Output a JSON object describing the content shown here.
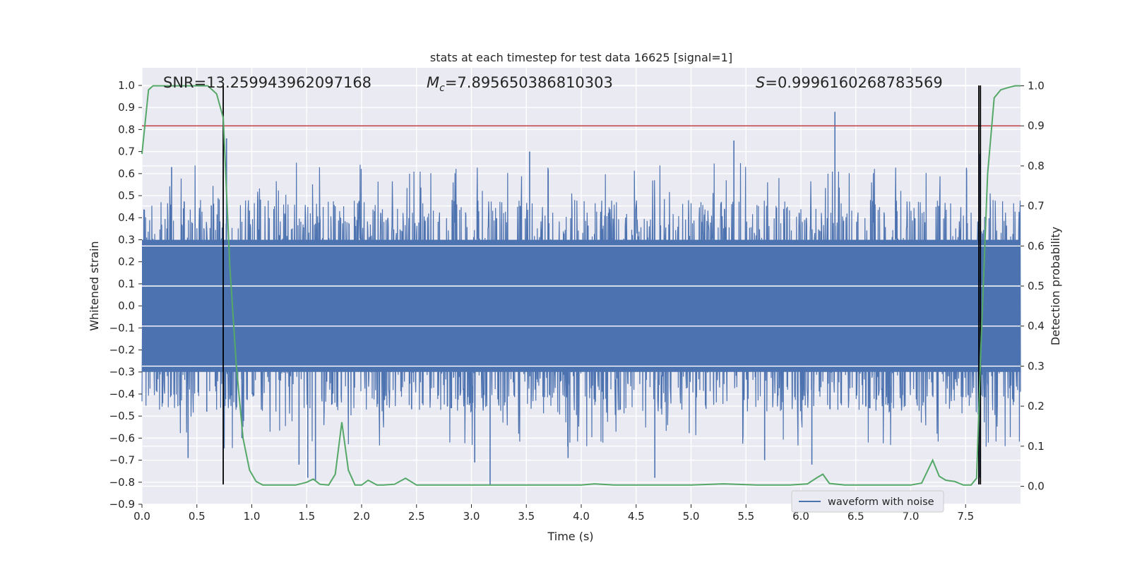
{
  "chart_data": {
    "type": "line",
    "title": "stats at each timestep for test data 16625 [signal=1]",
    "xlabel": "Time (s)",
    "ylabel_left": "Whitened strain",
    "ylabel_right": "Detection probability",
    "xlim": [
      0.0,
      8.0
    ],
    "ylim_left": [
      -0.9,
      1.08
    ],
    "ylim_right": [
      -0.045,
      1.045
    ],
    "x_ticks": [
      "0.0",
      "0.5",
      "1.0",
      "1.5",
      "2.0",
      "2.5",
      "3.0",
      "3.5",
      "4.0",
      "4.5",
      "5.0",
      "5.5",
      "6.0",
      "6.5",
      "7.0",
      "7.5"
    ],
    "x_tick_values": [
      0.0,
      0.5,
      1.0,
      1.5,
      2.0,
      2.5,
      3.0,
      3.5,
      4.0,
      4.5,
      5.0,
      5.5,
      6.0,
      6.5,
      7.0,
      7.5
    ],
    "y_ticks_left": [
      "1.0",
      "0.9",
      "0.8",
      "0.7",
      "0.6",
      "0.5",
      "0.4",
      "0.3",
      "0.2",
      "0.1",
      "0.0",
      "−0.1",
      "−0.2",
      "−0.3",
      "−0.4",
      "−0.5",
      "−0.6",
      "−0.7",
      "−0.8",
      "−0.9"
    ],
    "y_tick_values_left": [
      1.0,
      0.9,
      0.8,
      0.7,
      0.6,
      0.5,
      0.4,
      0.3,
      0.2,
      0.1,
      0.0,
      -0.1,
      -0.2,
      -0.3,
      -0.4,
      -0.5,
      -0.6,
      -0.7,
      -0.8,
      -0.9
    ],
    "y_ticks_right": [
      "1.0",
      "0.9",
      "0.8",
      "0.7",
      "0.6",
      "0.5",
      "0.4",
      "0.3",
      "0.2",
      "0.1",
      "0.0"
    ],
    "y_tick_values_right": [
      1.0,
      0.9,
      0.8,
      0.7,
      0.6,
      0.5,
      0.4,
      0.3,
      0.2,
      0.1,
      0.0
    ],
    "grid": true,
    "annotations": {
      "snr": "SNR=13.259943962097168",
      "mc_symbol": "M",
      "mc_subscript": "c",
      "mc_value": "=7.895650386810303",
      "s_symbol": "S",
      "s_value": "=0.9996160268783569"
    },
    "threshold_right": 0.9,
    "vlines_x": [
      0.74,
      7.62,
      7.635
    ],
    "vlines_ymin_left": -0.81,
    "vlines_ymax_left": 1.0,
    "series": [
      {
        "name": "waveform with noise",
        "color": "#4c72b0",
        "style": "dense-noise",
        "envelope_upper": 0.3,
        "envelope_lower": -0.3,
        "spikes": [
          {
            "x": 0.77,
            "y": 0.76
          },
          {
            "x": 0.27,
            "y": 0.63
          },
          {
            "x": 0.42,
            "y": -0.69
          },
          {
            "x": 0.59,
            "y": -0.48
          },
          {
            "x": 0.91,
            "y": -0.6
          },
          {
            "x": 1.43,
            "y": -0.72
          },
          {
            "x": 1.51,
            "y": -0.78
          },
          {
            "x": 1.58,
            "y": -0.79
          },
          {
            "x": 3.03,
            "y": -0.71
          },
          {
            "x": 3.17,
            "y": -0.81
          },
          {
            "x": 3.53,
            "y": 0.7
          },
          {
            "x": 3.88,
            "y": -0.69
          },
          {
            "x": 5.39,
            "y": 0.75
          },
          {
            "x": 5.67,
            "y": -0.7
          },
          {
            "x": 6.1,
            "y": -0.72
          },
          {
            "x": 6.31,
            "y": 0.88
          },
          {
            "x": 7.63,
            "y": -0.78
          },
          {
            "x": 7.63,
            "y": 0.69
          },
          {
            "x": 4.67,
            "y": -0.78
          }
        ]
      },
      {
        "name": "",
        "color": "#55a868",
        "axis": "right",
        "x": [
          0.0,
          0.06,
          0.1,
          0.2,
          0.4,
          0.6,
          0.68,
          0.74,
          0.8,
          0.86,
          0.92,
          0.98,
          1.04,
          1.1,
          1.2,
          1.4,
          1.5,
          1.56,
          1.62,
          1.7,
          1.76,
          1.82,
          1.88,
          1.94,
          2.0,
          2.06,
          2.14,
          2.2,
          2.3,
          2.4,
          2.5,
          2.6,
          3.0,
          3.5,
          4.0,
          4.12,
          4.3,
          4.5,
          5.0,
          5.3,
          5.6,
          5.9,
          6.06,
          6.15,
          6.2,
          6.26,
          6.4,
          6.6,
          7.0,
          7.1,
          7.2,
          7.26,
          7.32,
          7.4,
          7.48,
          7.55,
          7.6,
          7.64,
          7.7,
          7.76,
          7.82,
          7.88,
          7.95,
          8.0
        ],
        "y": [
          0.83,
          0.99,
          1.0,
          1.0,
          1.0,
          1.0,
          0.98,
          0.92,
          0.55,
          0.3,
          0.12,
          0.04,
          0.012,
          0.003,
          0.003,
          0.003,
          0.01,
          0.018,
          0.005,
          0.003,
          0.03,
          0.16,
          0.04,
          0.003,
          0.003,
          0.015,
          0.003,
          0.003,
          0.005,
          0.02,
          0.003,
          0.003,
          0.003,
          0.003,
          0.003,
          0.006,
          0.003,
          0.003,
          0.003,
          0.006,
          0.003,
          0.003,
          0.006,
          0.022,
          0.03,
          0.007,
          0.003,
          0.003,
          0.003,
          0.008,
          0.065,
          0.025,
          0.015,
          0.012,
          0.003,
          0.003,
          0.02,
          0.35,
          0.78,
          0.97,
          0.99,
          0.995,
          1.0,
          1.0
        ]
      },
      {
        "name": "",
        "color": "#c44e52",
        "axis": "right",
        "style": "hline"
      }
    ],
    "legend": {
      "position": "lower-right",
      "entries": [
        "waveform with noise"
      ]
    }
  },
  "colors": {
    "plot_bg": "#eaeaf2",
    "grid": "#ffffff",
    "waveform": "#4c72b0",
    "probability": "#55a868",
    "threshold": "#c44e52",
    "vline": "#000000"
  }
}
